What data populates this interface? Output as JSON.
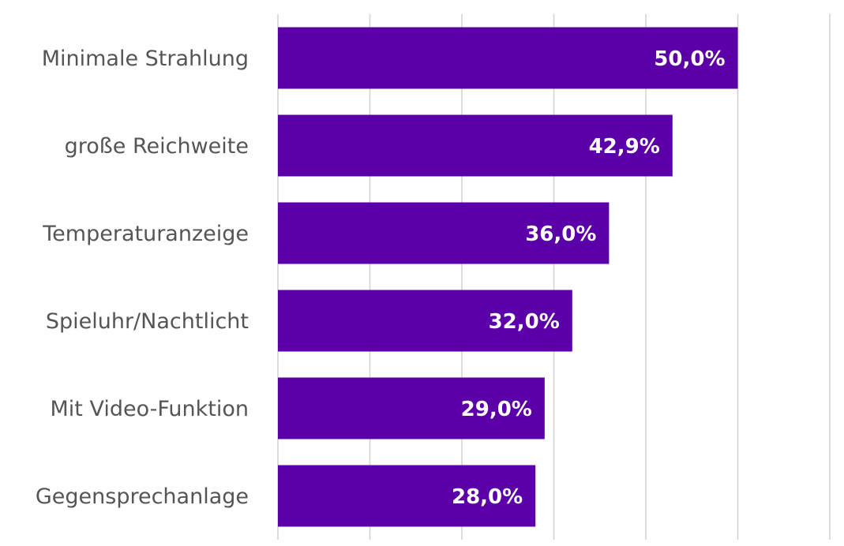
{
  "chart_data": {
    "type": "bar",
    "orientation": "horizontal",
    "categories": [
      "Minimale Strahlung",
      "große Reichweite",
      "Temperaturanzeige",
      "Spieluhr/Nachtlicht",
      "Mit Video-Funktion",
      "Gegensprechanlage"
    ],
    "values": [
      50.0,
      42.9,
      36.0,
      32.0,
      29.0,
      28.0
    ],
    "value_labels": [
      "50,0%",
      "42,9%",
      "36,0%",
      "32,0%",
      "29,0%",
      "28,0%"
    ],
    "color": "#5b00a8",
    "xlim": [
      0,
      60
    ],
    "xticks": [
      0,
      10,
      20,
      30,
      40,
      50,
      60
    ],
    "grid": true
  }
}
